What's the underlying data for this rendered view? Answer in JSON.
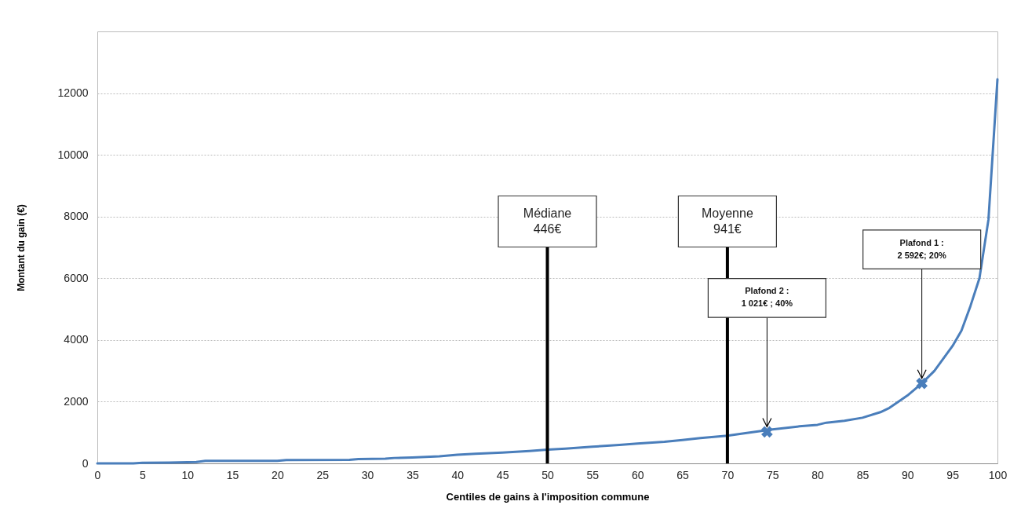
{
  "chart_data": {
    "type": "line",
    "xlabel": "Centiles de gains à l'imposition commune",
    "ylabel": "Montant du gain (€)",
    "xlim": [
      0,
      100
    ],
    "xticks": [
      0,
      5,
      10,
      15,
      20,
      25,
      30,
      35,
      40,
      45,
      50,
      55,
      60,
      65,
      70,
      75,
      80,
      85,
      90,
      95,
      100
    ],
    "ylim": [
      0,
      14000
    ],
    "yticks": [
      0,
      2000,
      4000,
      6000,
      8000,
      10000,
      12000
    ],
    "grid": "y",
    "marker": "none",
    "line_style": "solid",
    "series": [
      {
        "type": "line",
        "color": "#4a7ebb",
        "x": [
          0,
          4,
          5,
          8,
          10,
          11,
          12,
          20,
          21,
          28,
          29,
          32,
          33,
          35,
          38,
          40,
          42,
          45,
          48,
          50,
          52,
          55,
          58,
          60,
          63,
          65,
          67,
          70,
          72,
          75,
          78,
          80,
          81,
          83,
          85,
          87,
          88,
          90,
          91.6,
          93,
          94,
          95,
          96,
          97,
          98,
          99,
          100
        ],
        "values": [
          0,
          0,
          20,
          25,
          40,
          45,
          80,
          85,
          110,
          115,
          140,
          150,
          175,
          190,
          230,
          280,
          310,
          350,
          400,
          446,
          480,
          540,
          600,
          640,
          700,
          760,
          820,
          900,
          980,
          1100,
          1200,
          1250,
          1320,
          1380,
          1480,
          1660,
          1800,
          2200,
          2592,
          3000,
          3400,
          3800,
          4300,
          5100,
          6000,
          7900,
          12450
        ]
      },
      {
        "type": "scatter",
        "marker": "cross",
        "color": "#4a7ebb",
        "x": [
          74.4,
          91.6
        ],
        "values": [
          1021,
          2592
        ]
      }
    ],
    "ref_lines": [
      {
        "axis": "x",
        "value": 50,
        "label": "Médiane\n446€",
        "color": "#000000"
      },
      {
        "axis": "x",
        "value": 70,
        "label": "Moyenne\n941€",
        "color": "#000000"
      }
    ],
    "annotations": [
      {
        "text": "Plafond 2 :\n1 021€ ; 40%",
        "x": 74.4,
        "y": 1021
      },
      {
        "text": "Plafond 1 :\n2 592€; 20%",
        "x": 91.6,
        "y": 2592
      }
    ]
  }
}
